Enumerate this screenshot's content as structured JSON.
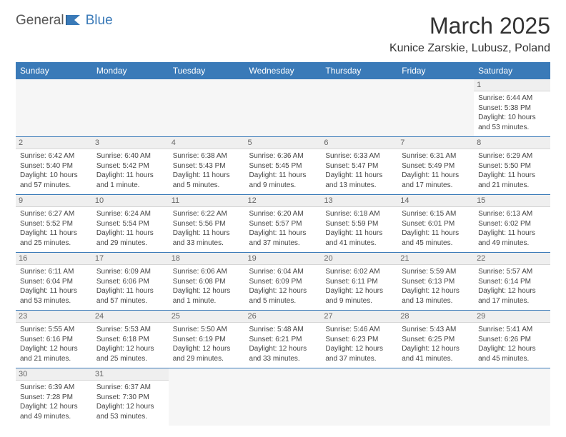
{
  "logo": {
    "general": "General",
    "blue": "Blue"
  },
  "title": "March 2025",
  "location": "Kunice Zarskie, Lubusz, Poland",
  "colors": {
    "header_bg": "#3a7ab8",
    "header_text": "#ffffff",
    "border": "#3a7ab8"
  },
  "weekdays": [
    "Sunday",
    "Monday",
    "Tuesday",
    "Wednesday",
    "Thursday",
    "Friday",
    "Saturday"
  ],
  "weeks": [
    [
      null,
      null,
      null,
      null,
      null,
      null,
      {
        "d": "1",
        "sr": "Sunrise: 6:44 AM",
        "ss": "Sunset: 5:38 PM",
        "dl1": "Daylight: 10 hours",
        "dl2": "and 53 minutes."
      }
    ],
    [
      {
        "d": "2",
        "sr": "Sunrise: 6:42 AM",
        "ss": "Sunset: 5:40 PM",
        "dl1": "Daylight: 10 hours",
        "dl2": "and 57 minutes."
      },
      {
        "d": "3",
        "sr": "Sunrise: 6:40 AM",
        "ss": "Sunset: 5:42 PM",
        "dl1": "Daylight: 11 hours",
        "dl2": "and 1 minute."
      },
      {
        "d": "4",
        "sr": "Sunrise: 6:38 AM",
        "ss": "Sunset: 5:43 PM",
        "dl1": "Daylight: 11 hours",
        "dl2": "and 5 minutes."
      },
      {
        "d": "5",
        "sr": "Sunrise: 6:36 AM",
        "ss": "Sunset: 5:45 PM",
        "dl1": "Daylight: 11 hours",
        "dl2": "and 9 minutes."
      },
      {
        "d": "6",
        "sr": "Sunrise: 6:33 AM",
        "ss": "Sunset: 5:47 PM",
        "dl1": "Daylight: 11 hours",
        "dl2": "and 13 minutes."
      },
      {
        "d": "7",
        "sr": "Sunrise: 6:31 AM",
        "ss": "Sunset: 5:49 PM",
        "dl1": "Daylight: 11 hours",
        "dl2": "and 17 minutes."
      },
      {
        "d": "8",
        "sr": "Sunrise: 6:29 AM",
        "ss": "Sunset: 5:50 PM",
        "dl1": "Daylight: 11 hours",
        "dl2": "and 21 minutes."
      }
    ],
    [
      {
        "d": "9",
        "sr": "Sunrise: 6:27 AM",
        "ss": "Sunset: 5:52 PM",
        "dl1": "Daylight: 11 hours",
        "dl2": "and 25 minutes."
      },
      {
        "d": "10",
        "sr": "Sunrise: 6:24 AM",
        "ss": "Sunset: 5:54 PM",
        "dl1": "Daylight: 11 hours",
        "dl2": "and 29 minutes."
      },
      {
        "d": "11",
        "sr": "Sunrise: 6:22 AM",
        "ss": "Sunset: 5:56 PM",
        "dl1": "Daylight: 11 hours",
        "dl2": "and 33 minutes."
      },
      {
        "d": "12",
        "sr": "Sunrise: 6:20 AM",
        "ss": "Sunset: 5:57 PM",
        "dl1": "Daylight: 11 hours",
        "dl2": "and 37 minutes."
      },
      {
        "d": "13",
        "sr": "Sunrise: 6:18 AM",
        "ss": "Sunset: 5:59 PM",
        "dl1": "Daylight: 11 hours",
        "dl2": "and 41 minutes."
      },
      {
        "d": "14",
        "sr": "Sunrise: 6:15 AM",
        "ss": "Sunset: 6:01 PM",
        "dl1": "Daylight: 11 hours",
        "dl2": "and 45 minutes."
      },
      {
        "d": "15",
        "sr": "Sunrise: 6:13 AM",
        "ss": "Sunset: 6:02 PM",
        "dl1": "Daylight: 11 hours",
        "dl2": "and 49 minutes."
      }
    ],
    [
      {
        "d": "16",
        "sr": "Sunrise: 6:11 AM",
        "ss": "Sunset: 6:04 PM",
        "dl1": "Daylight: 11 hours",
        "dl2": "and 53 minutes."
      },
      {
        "d": "17",
        "sr": "Sunrise: 6:09 AM",
        "ss": "Sunset: 6:06 PM",
        "dl1": "Daylight: 11 hours",
        "dl2": "and 57 minutes."
      },
      {
        "d": "18",
        "sr": "Sunrise: 6:06 AM",
        "ss": "Sunset: 6:08 PM",
        "dl1": "Daylight: 12 hours",
        "dl2": "and 1 minute."
      },
      {
        "d": "19",
        "sr": "Sunrise: 6:04 AM",
        "ss": "Sunset: 6:09 PM",
        "dl1": "Daylight: 12 hours",
        "dl2": "and 5 minutes."
      },
      {
        "d": "20",
        "sr": "Sunrise: 6:02 AM",
        "ss": "Sunset: 6:11 PM",
        "dl1": "Daylight: 12 hours",
        "dl2": "and 9 minutes."
      },
      {
        "d": "21",
        "sr": "Sunrise: 5:59 AM",
        "ss": "Sunset: 6:13 PM",
        "dl1": "Daylight: 12 hours",
        "dl2": "and 13 minutes."
      },
      {
        "d": "22",
        "sr": "Sunrise: 5:57 AM",
        "ss": "Sunset: 6:14 PM",
        "dl1": "Daylight: 12 hours",
        "dl2": "and 17 minutes."
      }
    ],
    [
      {
        "d": "23",
        "sr": "Sunrise: 5:55 AM",
        "ss": "Sunset: 6:16 PM",
        "dl1": "Daylight: 12 hours",
        "dl2": "and 21 minutes."
      },
      {
        "d": "24",
        "sr": "Sunrise: 5:53 AM",
        "ss": "Sunset: 6:18 PM",
        "dl1": "Daylight: 12 hours",
        "dl2": "and 25 minutes."
      },
      {
        "d": "25",
        "sr": "Sunrise: 5:50 AM",
        "ss": "Sunset: 6:19 PM",
        "dl1": "Daylight: 12 hours",
        "dl2": "and 29 minutes."
      },
      {
        "d": "26",
        "sr": "Sunrise: 5:48 AM",
        "ss": "Sunset: 6:21 PM",
        "dl1": "Daylight: 12 hours",
        "dl2": "and 33 minutes."
      },
      {
        "d": "27",
        "sr": "Sunrise: 5:46 AM",
        "ss": "Sunset: 6:23 PM",
        "dl1": "Daylight: 12 hours",
        "dl2": "and 37 minutes."
      },
      {
        "d": "28",
        "sr": "Sunrise: 5:43 AM",
        "ss": "Sunset: 6:25 PM",
        "dl1": "Daylight: 12 hours",
        "dl2": "and 41 minutes."
      },
      {
        "d": "29",
        "sr": "Sunrise: 5:41 AM",
        "ss": "Sunset: 6:26 PM",
        "dl1": "Daylight: 12 hours",
        "dl2": "and 45 minutes."
      }
    ],
    [
      {
        "d": "30",
        "sr": "Sunrise: 6:39 AM",
        "ss": "Sunset: 7:28 PM",
        "dl1": "Daylight: 12 hours",
        "dl2": "and 49 minutes."
      },
      {
        "d": "31",
        "sr": "Sunrise: 6:37 AM",
        "ss": "Sunset: 7:30 PM",
        "dl1": "Daylight: 12 hours",
        "dl2": "and 53 minutes."
      },
      null,
      null,
      null,
      null,
      null
    ]
  ]
}
